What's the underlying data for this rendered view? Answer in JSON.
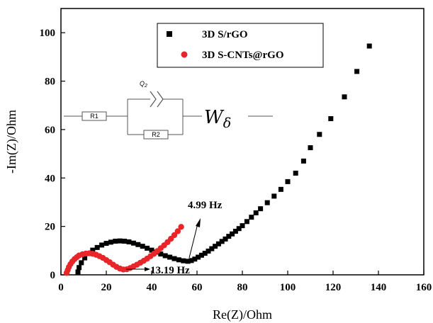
{
  "chart_data": {
    "type": "scatter",
    "xlabel": "Re(Z)/Ohm",
    "ylabel": "-Im(Z)/Ohm",
    "xlim": [
      0,
      160
    ],
    "ylim": [
      0,
      110
    ],
    "x_ticks": [
      "0",
      "20",
      "40",
      "60",
      "80",
      "100",
      "120",
      "140",
      "160"
    ],
    "y_ticks": [
      "0",
      "20",
      "40",
      "60",
      "80",
      "100"
    ],
    "legend_position": "top-center",
    "series": [
      {
        "name": "3D S/rGO",
        "marker": "square",
        "color": "#000000",
        "x": [
          7.5,
          8,
          9,
          10.5,
          12,
          14,
          16,
          18,
          20,
          22,
          24,
          26,
          28,
          30,
          32,
          34,
          36,
          38,
          40,
          42,
          44,
          46,
          48,
          50,
          52,
          54,
          56,
          57.5,
          59,
          60.5,
          62,
          63.5,
          65,
          66.5,
          68,
          69.5,
          71,
          72.5,
          74,
          75.5,
          77,
          78.5,
          80,
          82,
          84,
          86,
          88,
          91,
          94,
          97,
          100,
          103.5,
          107,
          110,
          114,
          119,
          125,
          130.5,
          136
        ],
        "y": [
          1.2,
          3,
          5,
          7,
          8.8,
          10.2,
          11.3,
          12.3,
          13,
          13.5,
          13.9,
          14,
          13.9,
          13.6,
          13.1,
          12.5,
          11.8,
          11,
          10.2,
          9.4,
          8.6,
          7.9,
          7.3,
          6.7,
          6.2,
          5.8,
          5.6,
          5.9,
          6.5,
          7.3,
          8.1,
          8.9,
          9.8,
          10.8,
          11.8,
          12.8,
          13.8,
          14.8,
          15.9,
          16.9,
          18,
          19.1,
          20.3,
          22,
          23.8,
          25.6,
          27.3,
          29.8,
          32.5,
          35.3,
          38.5,
          42,
          47,
          52.5,
          58,
          64.5,
          73.5,
          84,
          94.5
        ]
      },
      {
        "name": "3D S-CNTs@rGO",
        "marker": "circle",
        "color": "#e8262a",
        "x": [
          2.5,
          3,
          3.5,
          4.2,
          5,
          6,
          7,
          8,
          9.5,
          11,
          12.5,
          14,
          15.5,
          17,
          18.5,
          20,
          21.5,
          23,
          24.5,
          26,
          27.5,
          29,
          30.5,
          32,
          33.5,
          35,
          36.5,
          38,
          39.5,
          41,
          42.5,
          44,
          45.5,
          47,
          48.5,
          50,
          51.5,
          53
        ],
        "y": [
          0.8,
          2,
          3.2,
          4.4,
          5.5,
          6.5,
          7.3,
          8,
          8.5,
          8.8,
          8.9,
          8.7,
          8.3,
          7.7,
          7,
          6.1,
          5.2,
          4.2,
          3.3,
          2.6,
          2.2,
          2.3,
          2.8,
          3.5,
          4.2,
          5,
          5.8,
          6.7,
          7.7,
          8.7,
          9.8,
          11,
          12.2,
          13.5,
          14.9,
          16.4,
          18,
          19.8
        ]
      }
    ],
    "annotations": [
      {
        "text": "4.99 Hz"
      },
      {
        "text": "13.19 Hz"
      }
    ],
    "inset": {
      "r1": "R1",
      "r2": "R2",
      "q": "Q",
      "q_sub": "2",
      "w": "W",
      "w_sub": "δ"
    }
  }
}
